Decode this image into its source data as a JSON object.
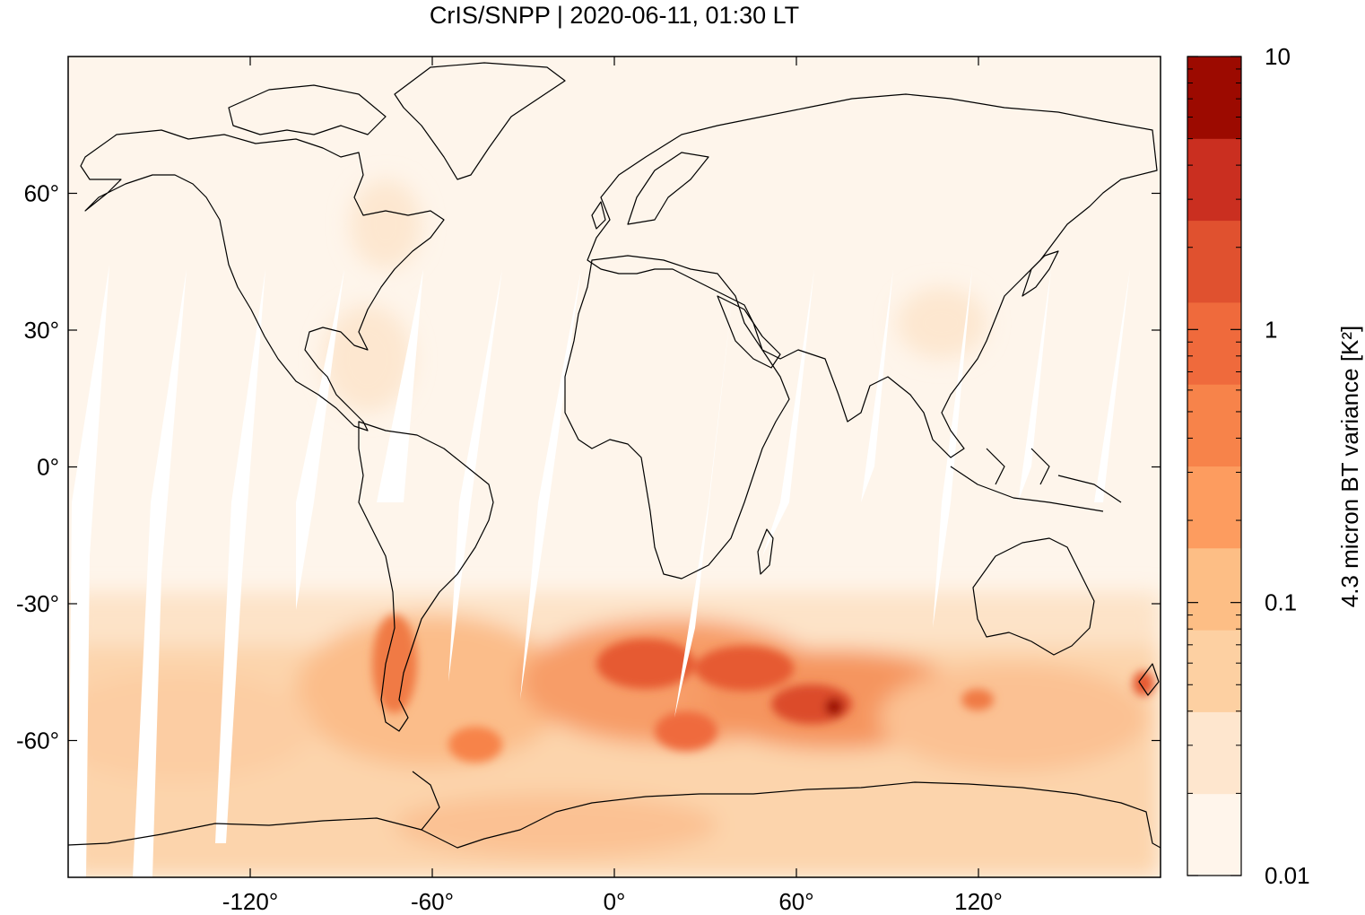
{
  "title": "CrIS/SNPP | 2020-06-11, 01:30 LT",
  "map": {
    "projection": "equirectangular",
    "lon_range": [
      -180,
      180
    ],
    "lat_range": [
      -90,
      90
    ],
    "coastlines": true,
    "colors": {
      "background": "#fef5eb",
      "gap": "#ffffff",
      "coast": "#000000"
    }
  },
  "axes": {
    "x_ticks": [
      {
        "value": -120,
        "label": "-120°"
      },
      {
        "value": -60,
        "label": "-60°"
      },
      {
        "value": 0,
        "label": "0°"
      },
      {
        "value": 60,
        "label": "60°"
      },
      {
        "value": 120,
        "label": "120°"
      }
    ],
    "y_ticks": [
      {
        "value": 60,
        "label": "60°"
      },
      {
        "value": 30,
        "label": "30°"
      },
      {
        "value": 0,
        "label": "0°"
      },
      {
        "value": -30,
        "label": "-30°"
      },
      {
        "value": -60,
        "label": "-60°"
      }
    ]
  },
  "colorbar": {
    "label": "4.3 micron BT variance [K²]",
    "scale": "log",
    "range": [
      0.01,
      10
    ],
    "tick_labels": [
      {
        "value": 10,
        "label": "10"
      },
      {
        "value": 1,
        "label": "1"
      },
      {
        "value": 0.1,
        "label": "0.1"
      },
      {
        "value": 0.01,
        "label": "0.01"
      }
    ],
    "colors": [
      "#fff5eb",
      "#fee6ce",
      "#fdd0a2",
      "#fdbe85",
      "#fd9c5f",
      "#f7834a",
      "#ef6a3c",
      "#e0512f",
      "#ca2f20",
      "#9c0a00"
    ]
  }
}
